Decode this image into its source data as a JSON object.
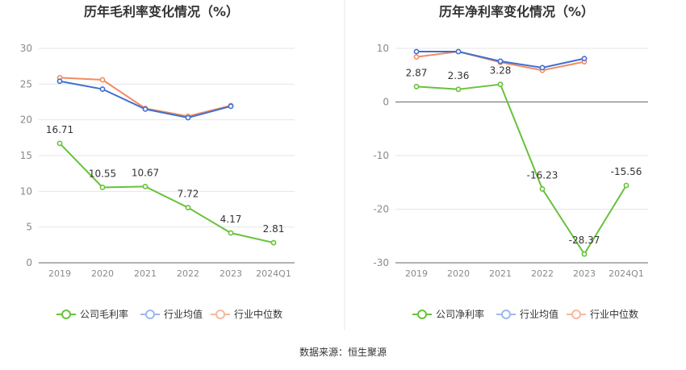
{
  "colors": {
    "company": "#67c23a",
    "industry_avg": "#3f6fd1",
    "industry_median": "#f28b62",
    "legend_avg": "#9db8ee",
    "legend_median": "#f6b89e"
  },
  "footer": {
    "source": "数据来源：恒生聚源"
  },
  "chart_data": [
    {
      "type": "line",
      "title": "历年毛利率变化情况（%）",
      "categories": [
        "2019",
        "2020",
        "2021",
        "2022",
        "2023",
        "2024Q1"
      ],
      "ylim": [
        0,
        30
      ],
      "yticks": [
        0,
        5,
        10,
        15,
        20,
        25,
        30
      ],
      "grid": true,
      "legend_position": "bottom",
      "series": [
        {
          "name": "公司毛利率",
          "values": [
            16.71,
            10.55,
            10.67,
            7.72,
            4.17,
            2.81
          ],
          "labels": [
            "16.71",
            "10.55",
            "10.67",
            "7.72",
            "4.17",
            "2.81"
          ]
        },
        {
          "name": "行业均值",
          "values": [
            25.4,
            24.3,
            21.5,
            20.3,
            21.9,
            null
          ]
        },
        {
          "name": "行业中位数",
          "values": [
            25.9,
            25.6,
            21.6,
            20.5,
            22.0,
            null
          ]
        }
      ]
    },
    {
      "type": "line",
      "title": "历年净利率变化情况（%）",
      "categories": [
        "2019",
        "2020",
        "2021",
        "2022",
        "2023",
        "2024Q1"
      ],
      "ylim": [
        -30,
        10
      ],
      "yticks": [
        -30,
        -20,
        -10,
        0,
        10
      ],
      "grid": true,
      "legend_position": "bottom",
      "series": [
        {
          "name": "公司净利率",
          "values": [
            2.87,
            2.36,
            3.28,
            -16.23,
            -28.37,
            -15.56
          ],
          "labels": [
            "2.87",
            "2.36",
            "3.28",
            "-16.23",
            "-28.37",
            "-15.56"
          ]
        },
        {
          "name": "行业均值",
          "values": [
            9.4,
            9.4,
            7.6,
            6.4,
            8.1,
            null
          ]
        },
        {
          "name": "行业中位数",
          "values": [
            8.4,
            9.4,
            7.4,
            5.9,
            7.5,
            null
          ]
        }
      ]
    }
  ]
}
